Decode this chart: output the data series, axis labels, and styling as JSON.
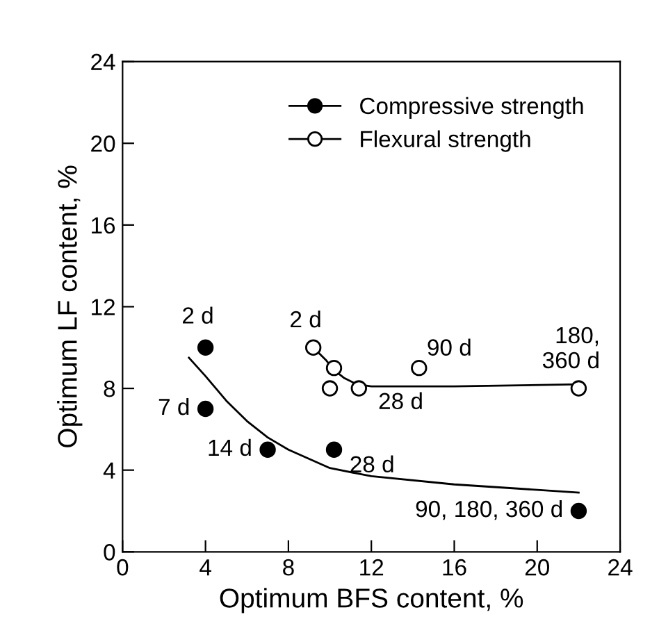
{
  "chart_data": {
    "type": "scatter",
    "xlabel": "Optimum BFS content, %",
    "ylabel": "Optimum LF content, %",
    "xlim": [
      0,
      24
    ],
    "ylim": [
      0,
      24
    ],
    "xticks": [
      0,
      4,
      8,
      12,
      16,
      20,
      24
    ],
    "yticks": [
      0,
      4,
      8,
      12,
      16,
      20,
      24
    ],
    "grid": false,
    "legend": "top right",
    "series": [
      {
        "name": "Compressive strength",
        "marker": "circle",
        "color": "#000000",
        "x": [
          4,
          4,
          7,
          10.2,
          22
        ],
        "values": [
          10,
          7,
          5,
          5,
          2
        ]
      },
      {
        "type": "line",
        "marker": "none",
        "color": "#000000",
        "x": [
          3.2,
          4,
          5,
          6,
          7,
          8,
          10,
          12,
          16,
          22
        ],
        "values": [
          9.5,
          8.6,
          7.4,
          6.4,
          5.6,
          5.0,
          4.1,
          3.7,
          3.3,
          2.9
        ]
      },
      {
        "name": "Flexural strength",
        "marker": "circle",
        "color": "#ffffff",
        "x": [
          9.2,
          10.2,
          10,
          11.4,
          14.3,
          22
        ],
        "values": [
          10,
          9,
          8,
          8,
          9,
          8
        ]
      },
      {
        "type": "line",
        "marker": "none",
        "color": "#000000",
        "x": [
          9.3,
          9.8,
          10.2,
          10.7,
          11.3,
          12,
          16,
          22
        ],
        "values": [
          9.9,
          9.4,
          8.9,
          8.5,
          8.2,
          8.1,
          8.1,
          8.2
        ]
      }
    ],
    "annotations": [
      {
        "text": "2 d",
        "x": 4,
        "y": 10
      },
      {
        "text": "7 d",
        "x": 4,
        "y": 7
      },
      {
        "text": "14 d",
        "x": 7,
        "y": 5
      },
      {
        "text": "28 d",
        "x": 10.2,
        "y": 5
      },
      {
        "text": "90, 180, 360 d",
        "x": 22,
        "y": 2
      },
      {
        "text": "2 d",
        "x": 9.2,
        "y": 10
      },
      {
        "text": "28 d",
        "x": 11.4,
        "y": 8
      },
      {
        "text": "90 d",
        "x": 14.3,
        "y": 9
      },
      {
        "text": "180,\n360 d",
        "x": 22,
        "y": 8
      }
    ]
  }
}
